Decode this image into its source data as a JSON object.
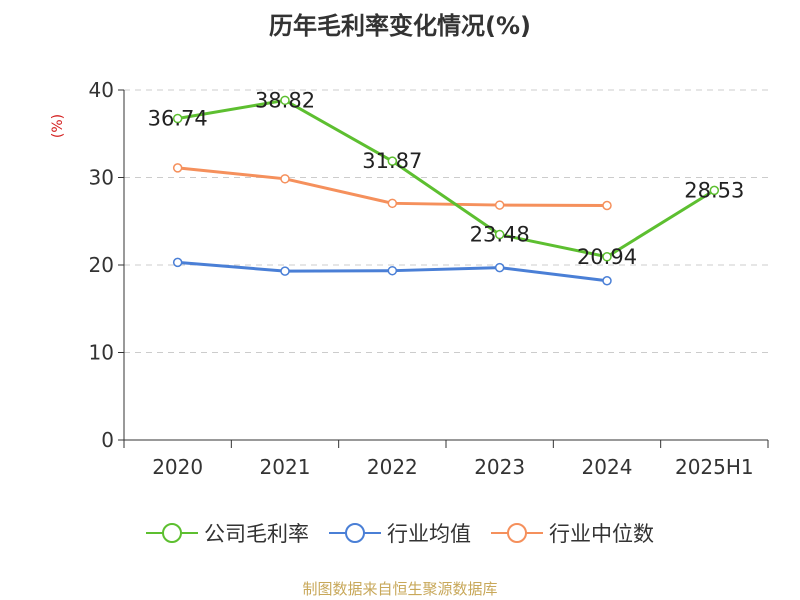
{
  "chart_data": {
    "type": "line",
    "title": "历年毛利率变化情况(%)",
    "ylabel": "(%)",
    "xlabel": "",
    "categories": [
      "2020",
      "2021",
      "2022",
      "2023",
      "2024",
      "2025H1"
    ],
    "ylim": [
      0,
      40
    ],
    "yticks": [
      0,
      10,
      20,
      30,
      40
    ],
    "grid": true,
    "legend_position": "bottom",
    "series": [
      {
        "name": "公司毛利率",
        "color": "#5dbf30",
        "values": [
          36.74,
          38.82,
          31.87,
          23.48,
          20.94,
          28.53
        ],
        "labels": [
          "36.74",
          "38.82",
          "31.87",
          "23.48",
          "20.94",
          "28.53"
        ]
      },
      {
        "name": "行业均值",
        "color": "#4a7fd6",
        "values": [
          20.3,
          19.3,
          19.35,
          19.7,
          18.2,
          null
        ]
      },
      {
        "name": "行业中位数",
        "color": "#f5905c",
        "values": [
          31.1,
          29.85,
          27.05,
          26.85,
          26.8,
          null
        ]
      }
    ]
  },
  "footer": {
    "source": "制图数据来自恒生聚源数据库"
  }
}
